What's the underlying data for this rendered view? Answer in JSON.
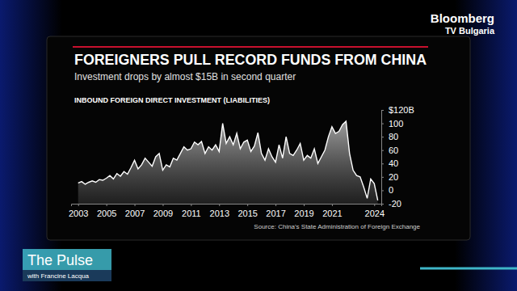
{
  "chart_data": {
    "type": "area",
    "title": "FOREIGNERS PULL RECORD FUNDS FROM CHINA",
    "subtitle": "Investment drops by almost $15B in second quarter",
    "ylabel": "INBOUND FOREIGN DIRECT INVESTMENT (LIABILITIES)",
    "source": "Source: China's State Administration of Foreign Exchange",
    "color": "#ffffff",
    "grid": false,
    "x": [
      2003,
      2003.25,
      2003.5,
      2003.75,
      2004,
      2004.25,
      2004.5,
      2004.75,
      2005,
      2005.25,
      2005.5,
      2005.75,
      2006,
      2006.25,
      2006.5,
      2006.75,
      2007,
      2007.25,
      2007.5,
      2007.75,
      2008,
      2008.25,
      2008.5,
      2008.75,
      2009,
      2009.25,
      2009.5,
      2009.75,
      2010,
      2010.25,
      2010.5,
      2010.75,
      2011,
      2011.25,
      2011.5,
      2011.75,
      2012,
      2012.25,
      2012.5,
      2012.75,
      2013,
      2013.25,
      2013.5,
      2013.75,
      2014,
      2014.25,
      2014.5,
      2014.75,
      2015,
      2015.25,
      2015.5,
      2015.75,
      2016,
      2016.25,
      2016.5,
      2016.75,
      2017,
      2017.25,
      2017.5,
      2017.75,
      2018,
      2018.25,
      2018.5,
      2018.75,
      2019,
      2019.25,
      2019.5,
      2019.75,
      2020,
      2020.25,
      2020.5,
      2020.75,
      2021,
      2021.25,
      2021.5,
      2021.75,
      2022,
      2022.25,
      2022.5,
      2022.75,
      2023,
      2023.25,
      2023.5,
      2023.75,
      2024,
      2024.25
    ],
    "values": [
      11,
      13,
      9,
      12,
      14,
      12,
      16,
      15,
      18,
      22,
      17,
      25,
      21,
      28,
      24,
      34,
      45,
      32,
      38,
      48,
      42,
      36,
      50,
      55,
      30,
      38,
      35,
      48,
      45,
      55,
      65,
      60,
      62,
      72,
      68,
      73,
      55,
      65,
      60,
      68,
      58,
      100,
      70,
      80,
      68,
      85,
      62,
      72,
      75,
      58,
      66,
      86,
      55,
      45,
      62,
      50,
      42,
      68,
      48,
      80,
      55,
      52,
      60,
      70,
      45,
      52,
      48,
      62,
      40,
      50,
      60,
      80,
      95,
      85,
      88,
      98,
      103,
      55,
      30,
      22,
      20,
      5,
      -12,
      17,
      10,
      -15
    ],
    "xlim": [
      2002.5,
      2024.5
    ],
    "xticks": [
      2003,
      2005,
      2007,
      2009,
      2011,
      2013,
      2015,
      2017,
      2019,
      2021,
      2024
    ],
    "ylim": [
      -20,
      120
    ],
    "yticks": [
      {
        "value": 120,
        "label": "$120B"
      },
      100,
      80,
      60,
      40,
      20,
      0,
      -20
    ]
  },
  "broadcast": {
    "logo": "Bloomberg",
    "channel": "TV Bulgaria",
    "show": "The Pulse",
    "host": "with Francine Lacqua"
  }
}
